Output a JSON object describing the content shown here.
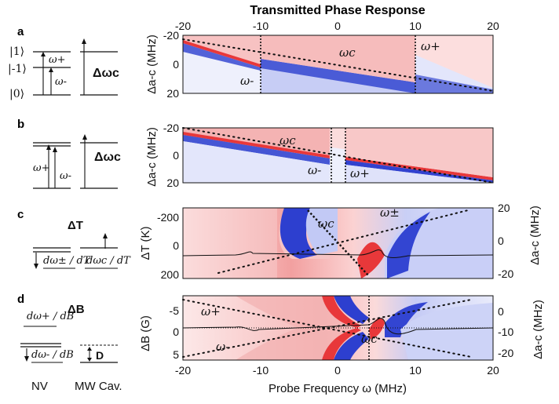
{
  "figure": {
    "title": "Transmitted Phase Response",
    "xlabel": "Probe Frequency ω (MHz)",
    "x_ticks": [
      "-20",
      "-10",
      "0",
      "10",
      "20"
    ],
    "bottom_labels": {
      "nv": "NV",
      "cav": "MW Cav."
    }
  },
  "panels": [
    {
      "letter": "a",
      "ylabel": "Δa-c (MHz)",
      "y_ticks": [
        "-20",
        "0",
        "20"
      ],
      "levels": [
        "|1⟩",
        "|-1⟩",
        "|0⟩"
      ],
      "nv_labels": [
        "ω+",
        "ω-"
      ],
      "cav_label": "Δωc",
      "plot_labels": {
        "omega_c": "ωc",
        "omega_minus": "ω-",
        "omega_plus": "ω+"
      }
    },
    {
      "letter": "b",
      "ylabel": "Δa-c (MHz)",
      "y_ticks": [
        "-20",
        "0",
        "20"
      ],
      "nv_labels": [
        "ω+",
        "ω-"
      ],
      "cav_label": "Δωc",
      "plot_labels": {
        "omega_c": "ωc",
        "omega_minus": "ω-",
        "omega_plus": "ω+"
      }
    },
    {
      "letter": "c",
      "header": "ΔT",
      "ylabel": "ΔT (K)",
      "y_ticks": [
        "-200",
        "0",
        "200"
      ],
      "right_label": "Δa-c (MHz)",
      "right_ticks": [
        "20",
        "0",
        "-20"
      ],
      "nv_deriv": "dω± / dT",
      "cav_deriv": "dωc / dT",
      "plot_labels": {
        "omega_c": "ωc",
        "omega_pm": "ω±"
      }
    },
    {
      "letter": "d",
      "header": "ΔB",
      "ylabel": "ΔB (G)",
      "y_ticks": [
        "-5",
        "0",
        "5"
      ],
      "right_label": "Δa-c (MHz)",
      "right_ticks": [
        "0",
        "-10",
        "-20"
      ],
      "nv_deriv_top": "dω+ / dB",
      "nv_deriv_bot": "dω- / dB",
      "cav_text": "D",
      "plot_labels": {
        "omega_c": "ωc",
        "omega_plus": "ω+",
        "omega_minus": "ω-"
      }
    }
  ],
  "colors": {
    "red": "#e8383a",
    "blue": "#2d3fcf",
    "white": "#ffffff"
  }
}
